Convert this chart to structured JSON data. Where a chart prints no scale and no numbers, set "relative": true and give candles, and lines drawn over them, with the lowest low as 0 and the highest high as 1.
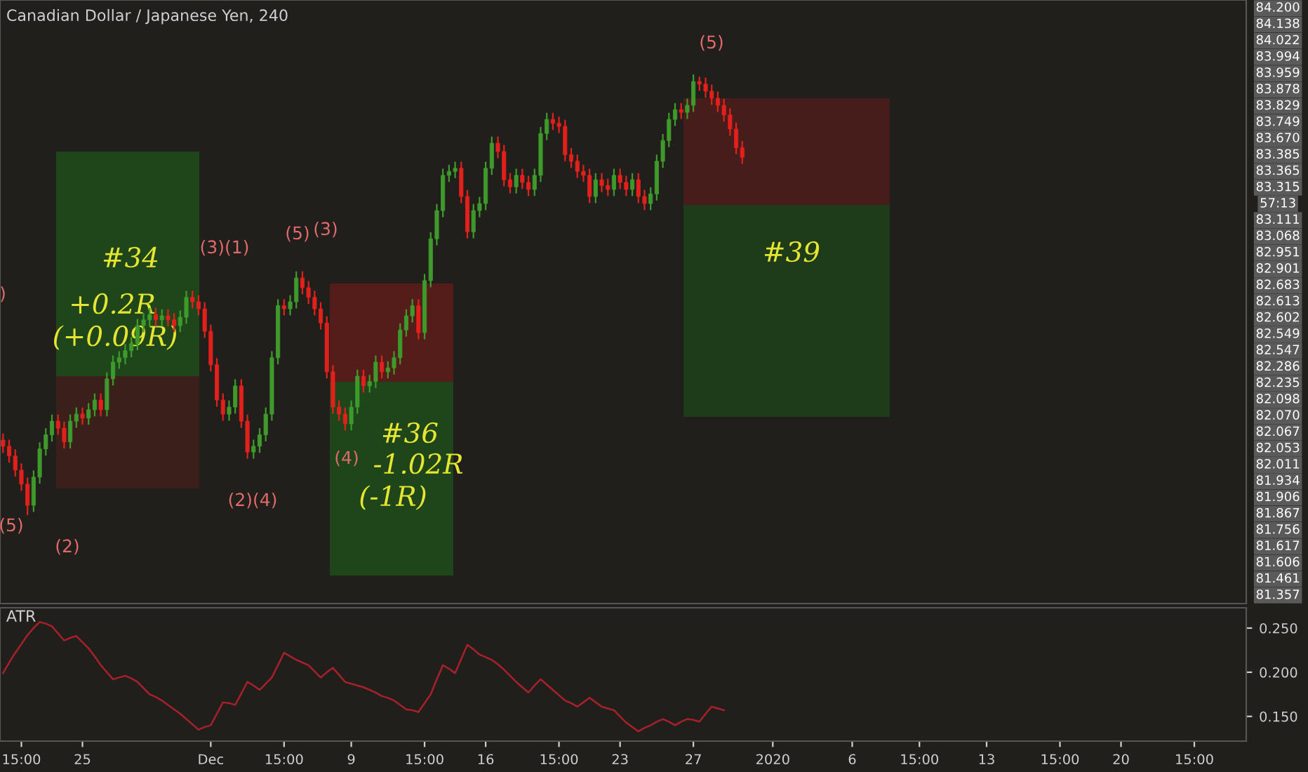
{
  "chart_data": [
    {
      "type": "candlestick",
      "title": "Canadian Dollar / Japanese Yen, 240",
      "relative": true,
      "grid": false,
      "categories": [
        null,
        null,
        null,
        null,
        null,
        null,
        null,
        null,
        null,
        null,
        null,
        null,
        null,
        null,
        null,
        null,
        null,
        null,
        null,
        null,
        null,
        null,
        null,
        null,
        null,
        null,
        null,
        null,
        null,
        null,
        null,
        null,
        null,
        null,
        null,
        null,
        null,
        null,
        null,
        null,
        null,
        null,
        null,
        null,
        null,
        null,
        null,
        null,
        null,
        null,
        null,
        null,
        null,
        null,
        null,
        null,
        null,
        null,
        null,
        null,
        null,
        null,
        null,
        null,
        null,
        null,
        null,
        null,
        null,
        null,
        null,
        null,
        null,
        null,
        null,
        null,
        null,
        null,
        null,
        null,
        null,
        null,
        null,
        null,
        null,
        null,
        null,
        null,
        null,
        null,
        null,
        null,
        null,
        null,
        null,
        null,
        null,
        null,
        null,
        null,
        null,
        null,
        null,
        null,
        null,
        null,
        null,
        null,
        null,
        null,
        null,
        null,
        null,
        null,
        null,
        null,
        null,
        null,
        null,
        null,
        null,
        null,
        null,
        null,
        null,
        null,
        null,
        null,
        null,
        null,
        null,
        null,
        null,
        null,
        null,
        null,
        null,
        null,
        null,
        null,
        null,
        null,
        null,
        null,
        null,
        null,
        null,
        null,
        null,
        null,
        null,
        null,
        null,
        null,
        null,
        null,
        null,
        null,
        null,
        null,
        null,
        null,
        null,
        null,
        null,
        null,
        null,
        null,
        null,
        null,
        null,
        null,
        null,
        null,
        null,
        null,
        null,
        null,
        null,
        null,
        null,
        null,
        null,
        null,
        null,
        null,
        null,
        null,
        null,
        null,
        null,
        null,
        null,
        null,
        null,
        null,
        null,
        null,
        null,
        null,
        null,
        null,
        null,
        null
      ],
      "ohlc": [
        [
          0.17,
          0.185,
          0.141,
          0.156
        ],
        [
          0.156,
          0.171,
          0.119,
          0.134
        ],
        [
          0.134,
          0.149,
          0.087,
          0.102
        ],
        [
          0.102,
          0.117,
          0.055,
          0.07
        ],
        [
          0.07,
          0.085,
          0,
          0.022
        ],
        [
          0.022,
          0.101,
          0.007,
          0.086
        ],
        [
          0.086,
          0.165,
          0.071,
          0.15
        ],
        [
          0.15,
          0.197,
          0.135,
          0.182
        ],
        [
          0.182,
          0.228,
          0.167,
          0.213
        ],
        [
          0.213,
          0.228,
          0.182,
          0.197
        ],
        [
          0.197,
          0.212,
          0.151,
          0.166
        ],
        [
          0.166,
          0.228,
          0.151,
          0.213
        ],
        [
          0.213,
          0.244,
          0.198,
          0.229
        ],
        [
          0.229,
          0.244,
          0.205,
          0.22
        ],
        [
          0.22,
          0.254,
          0.205,
          0.239
        ],
        [
          0.239,
          0.276,
          0.224,
          0.261
        ],
        [
          0.261,
          0.276,
          0.224,
          0.239
        ],
        [
          0.239,
          0.324,
          0.224,
          0.309
        ],
        [
          0.309,
          0.362,
          0.294,
          0.347
        ],
        [
          0.347,
          0.372,
          0.332,
          0.357
        ],
        [
          0.357,
          0.388,
          0.342,
          0.373
        ],
        [
          0.373,
          0.404,
          0.358,
          0.389
        ],
        [
          0.389,
          0.445,
          0.374,
          0.43
        ],
        [
          0.43,
          0.458,
          0.415,
          0.443
        ],
        [
          0.443,
          0.47,
          0.428,
          0.455
        ],
        [
          0.455,
          0.47,
          0.428,
          0.443
        ],
        [
          0.443,
          0.467,
          0.428,
          0.452
        ],
        [
          0.452,
          0.467,
          0.428,
          0.443
        ],
        [
          0.443,
          0.458,
          0.415,
          0.43
        ],
        [
          0.43,
          0.464,
          0.415,
          0.449
        ],
        [
          0.449,
          0.509,
          0.434,
          0.494
        ],
        [
          0.494,
          0.509,
          0.469,
          0.484
        ],
        [
          0.484,
          0.499,
          0.453,
          0.468
        ],
        [
          0.468,
          0.483,
          0.402,
          0.417
        ],
        [
          0.417,
          0.432,
          0.326,
          0.341
        ],
        [
          0.341,
          0.356,
          0.246,
          0.261
        ],
        [
          0.261,
          0.276,
          0.214,
          0.229
        ],
        [
          0.229,
          0.26,
          0.214,
          0.245
        ],
        [
          0.245,
          0.308,
          0.23,
          0.293
        ],
        [
          0.293,
          0.308,
          0.198,
          0.213
        ],
        [
          0.213,
          0.228,
          0.128,
          0.143
        ],
        [
          0.143,
          0.171,
          0.128,
          0.156
        ],
        [
          0.156,
          0.197,
          0.141,
          0.182
        ],
        [
          0.182,
          0.244,
          0.167,
          0.229
        ],
        [
          0.229,
          0.372,
          0.214,
          0.357
        ],
        [
          0.357,
          0.49,
          0.342,
          0.475
        ],
        [
          0.475,
          0.49,
          0.453,
          0.468
        ],
        [
          0.468,
          0.499,
          0.453,
          0.484
        ],
        [
          0.484,
          0.553,
          0.469,
          0.538
        ],
        [
          0.538,
          0.553,
          0.501,
          0.516
        ],
        [
          0.516,
          0.531,
          0.479,
          0.494
        ],
        [
          0.494,
          0.509,
          0.453,
          0.468
        ],
        [
          0.468,
          0.483,
          0.421,
          0.436
        ],
        [
          0.436,
          0.451,
          0.31,
          0.325
        ],
        [
          0.325,
          0.34,
          0.23,
          0.245
        ],
        [
          0.245,
          0.26,
          0.214,
          0.229
        ],
        [
          0.229,
          0.244,
          0.192,
          0.207
        ],
        [
          0.207,
          0.26,
          0.192,
          0.245
        ],
        [
          0.245,
          0.33,
          0.23,
          0.315
        ],
        [
          0.315,
          0.33,
          0.278,
          0.293
        ],
        [
          0.293,
          0.318,
          0.278,
          0.303
        ],
        [
          0.303,
          0.362,
          0.288,
          0.347
        ],
        [
          0.347,
          0.362,
          0.31,
          0.325
        ],
        [
          0.325,
          0.349,
          0.31,
          0.334
        ],
        [
          0.334,
          0.372,
          0.319,
          0.357
        ],
        [
          0.357,
          0.435,
          0.342,
          0.42
        ],
        [
          0.42,
          0.467,
          0.405,
          0.452
        ],
        [
          0.452,
          0.49,
          0.437,
          0.475
        ],
        [
          0.475,
          0.49,
          0.399,
          0.414
        ],
        [
          0.414,
          0.547,
          0.399,
          0.532
        ],
        [
          0.532,
          0.642,
          0.517,
          0.627
        ],
        [
          0.627,
          0.706,
          0.612,
          0.691
        ],
        [
          0.691,
          0.786,
          0.676,
          0.771
        ],
        [
          0.771,
          0.795,
          0.756,
          0.78
        ],
        [
          0.78,
          0.802,
          0.765,
          0.787
        ],
        [
          0.787,
          0.802,
          0.708,
          0.723
        ],
        [
          0.723,
          0.738,
          0.628,
          0.643
        ],
        [
          0.643,
          0.706,
          0.628,
          0.691
        ],
        [
          0.691,
          0.722,
          0.676,
          0.707
        ],
        [
          0.707,
          0.802,
          0.692,
          0.787
        ],
        [
          0.787,
          0.859,
          0.772,
          0.844
        ],
        [
          0.844,
          0.859,
          0.81,
          0.825
        ],
        [
          0.825,
          0.84,
          0.746,
          0.761
        ],
        [
          0.761,
          0.776,
          0.73,
          0.745
        ],
        [
          0.745,
          0.786,
          0.73,
          0.771
        ],
        [
          0.771,
          0.786,
          0.74,
          0.755
        ],
        [
          0.755,
          0.77,
          0.724,
          0.739
        ],
        [
          0.739,
          0.786,
          0.724,
          0.771
        ],
        [
          0.771,
          0.881,
          0.756,
          0.866
        ],
        [
          0.866,
          0.913,
          0.851,
          0.898
        ],
        [
          0.898,
          0.913,
          0.874,
          0.889
        ],
        [
          0.889,
          0.904,
          0.867,
          0.882
        ],
        [
          0.882,
          0.897,
          0.803,
          0.818
        ],
        [
          0.818,
          0.833,
          0.788,
          0.803
        ],
        [
          0.803,
          0.818,
          0.765,
          0.78
        ],
        [
          0.78,
          0.795,
          0.756,
          0.771
        ],
        [
          0.771,
          0.786,
          0.708,
          0.723
        ],
        [
          0.723,
          0.776,
          0.708,
          0.761
        ],
        [
          0.761,
          0.776,
          0.733,
          0.748
        ],
        [
          0.748,
          0.763,
          0.724,
          0.739
        ],
        [
          0.739,
          0.786,
          0.724,
          0.771
        ],
        [
          0.771,
          0.786,
          0.74,
          0.755
        ],
        [
          0.755,
          0.77,
          0.724,
          0.739
        ],
        [
          0.739,
          0.776,
          0.724,
          0.761
        ],
        [
          0.761,
          0.776,
          0.708,
          0.723
        ],
        [
          0.723,
          0.738,
          0.692,
          0.707
        ],
        [
          0.707,
          0.744,
          0.692,
          0.729
        ],
        [
          0.729,
          0.818,
          0.714,
          0.803
        ],
        [
          0.803,
          0.865,
          0.788,
          0.85
        ],
        [
          0.85,
          0.913,
          0.835,
          0.898
        ],
        [
          0.898,
          0.935,
          0.883,
          0.92
        ],
        [
          0.92,
          0.935,
          0.899,
          0.914
        ],
        [
          0.914,
          0.945,
          0.899,
          0.93
        ],
        [
          0.93,
          1,
          0.915,
          0.984
        ],
        [
          0.984,
          0.995,
          0.963,
          0.978
        ],
        [
          0.978,
          0.993,
          0.947,
          0.962
        ],
        [
          0.962,
          0.977,
          0.931,
          0.946
        ],
        [
          0.946,
          0.961,
          0.915,
          0.93
        ],
        [
          0.93,
          0.945,
          0.893,
          0.908
        ],
        [
          0.908,
          0.923,
          0.861,
          0.876
        ],
        [
          0.876,
          0.891,
          0.819,
          0.834
        ],
        [
          0.834,
          0.849,
          0.797,
          0.812
        ],
        null,
        null,
        null,
        null,
        null,
        null,
        null,
        null,
        null,
        null,
        null,
        null,
        null,
        null,
        null,
        null,
        null,
        null,
        null,
        null,
        null,
        null,
        null,
        null,
        null,
        null,
        null,
        null,
        null,
        null,
        null,
        null,
        null,
        null,
        null,
        null,
        null,
        null,
        null,
        null,
        null,
        null,
        null,
        null,
        null,
        null,
        null,
        null,
        null,
        null,
        null,
        null,
        null,
        null,
        null,
        null,
        null,
        null,
        null,
        null,
        null,
        null,
        null,
        null,
        null,
        null,
        null,
        null,
        null,
        null,
        null,
        null,
        null,
        null,
        null,
        null,
        null,
        null,
        null,
        null,
        null,
        null
      ],
      "annotations": [
        ")",
        "(5)",
        "(2)",
        "(3)(1)",
        "(2)(4)",
        "(5)",
        "(3)",
        "(4)",
        "(5)",
        "#34",
        "+0.2R",
        "(+0.09R)",
        "#36",
        "-1.02R",
        "(-1R)",
        "#39",
        "84.200",
        "84.138",
        "84.022",
        "83.994",
        "83.959",
        "83.878",
        "83.829",
        "83.749",
        "83.670",
        "83.385",
        "83.365",
        "83.315",
        "57:13",
        "83.111",
        "83.068",
        "82.951",
        "82.901",
        "82.683",
        "82.613",
        "82.602",
        "82.549",
        "82.547",
        "82.286",
        "82.235",
        "82.098",
        "82.070",
        "82.067",
        "82.053",
        "82.011",
        "81.934",
        "81.906",
        "81.867",
        "81.756",
        "81.617",
        "81.606",
        "81.461",
        "81.357"
      ]
    },
    {
      "type": "line",
      "title": "ATR",
      "grid": false,
      "categories": [
        null,
        null,
        null,
        "15:00",
        null,
        null,
        null,
        null,
        null,
        null,
        null,
        null,
        null,
        "25",
        null,
        null,
        null,
        null,
        null,
        null,
        null,
        null,
        null,
        null,
        null,
        null,
        null,
        null,
        null,
        null,
        null,
        null,
        null,
        null,
        "Dec",
        null,
        null,
        null,
        null,
        null,
        null,
        null,
        null,
        null,
        null,
        null,
        "15:00",
        null,
        null,
        null,
        null,
        null,
        null,
        null,
        null,
        null,
        null,
        "9",
        null,
        null,
        null,
        null,
        null,
        null,
        null,
        null,
        null,
        null,
        null,
        "15:00",
        null,
        null,
        null,
        null,
        null,
        null,
        null,
        null,
        null,
        "16",
        null,
        null,
        null,
        null,
        null,
        null,
        null,
        null,
        null,
        null,
        null,
        "15:00",
        null,
        null,
        null,
        null,
        null,
        null,
        null,
        null,
        null,
        "23",
        null,
        null,
        null,
        null,
        null,
        null,
        null,
        null,
        null,
        null,
        null,
        "27",
        null,
        null,
        null,
        null,
        null,
        null,
        null,
        null,
        null,
        null,
        null,
        null,
        "2020",
        null,
        null,
        null,
        null,
        null,
        null,
        null,
        null,
        null,
        null,
        null,
        null,
        "6",
        null,
        null,
        null,
        null,
        null,
        null,
        null,
        null,
        null,
        null,
        "15:00",
        null,
        null,
        null,
        null,
        null,
        null,
        null,
        null,
        null,
        null,
        "13",
        null,
        null,
        null,
        null,
        null,
        null,
        null,
        null,
        null,
        null,
        null,
        "15:00",
        null,
        null,
        null,
        null,
        null,
        null,
        null,
        null,
        null,
        "20",
        null,
        null,
        null,
        null,
        null,
        null,
        null,
        null,
        null,
        null,
        null,
        "15:00",
        null,
        null,
        null,
        null,
        null,
        null,
        null,
        null
      ],
      "ylim": [
        0.122,
        0.273
      ],
      "yticks": [
        {
          "value": 0.15,
          "label": "0.150"
        },
        {
          "value": 0.2,
          "label": "0.200"
        },
        {
          "value": 0.25,
          "label": "0.250"
        }
      ],
      "series": [
        {
          "color": "#a8202a",
          "values": [
            0.199,
            0.211,
            0.222,
            0.232,
            0.242,
            0.25,
            0.257,
            0.255,
            0.252,
            0.244,
            0.236,
            0.239,
            0.241,
            0.234,
            0.227,
            0.218,
            0.208,
            0.2,
            0.192,
            0.194,
            0.196,
            0.193,
            0.189,
            0.182,
            0.175,
            0.172,
            0.168,
            0.163,
            0.158,
            0.153,
            0.147,
            0.141,
            0.135,
            0.138,
            0.14,
            0.153,
            0.166,
            0.165,
            0.163,
            0.176,
            0.189,
            0.185,
            0.18,
            0.187,
            0.194,
            0.208,
            0.222,
            0.218,
            0.214,
            0.211,
            0.208,
            0.201,
            0.194,
            0.2,
            0.205,
            0.197,
            0.189,
            0.187,
            0.185,
            0.183,
            0.18,
            0.177,
            0.173,
            0.171,
            0.168,
            0.163,
            0.158,
            0.157,
            0.155,
            0.165,
            0.175,
            0.192,
            0.208,
            0.204,
            0.199,
            0.215,
            0.231,
            0.226,
            0.22,
            0.217,
            0.214,
            0.209,
            0.203,
            0.196,
            0.189,
            0.183,
            0.177,
            0.185,
            0.192,
            0.186,
            0.18,
            0.174,
            0.168,
            0.165,
            0.161,
            0.166,
            0.171,
            0.166,
            0.161,
            0.159,
            0.157,
            0.15,
            0.143,
            0.138,
            0.133,
            0.137,
            0.14,
            0.144,
            0.147,
            0.144,
            0.14,
            0.144,
            0.147,
            0.146,
            0.144,
            0.153,
            0.161,
            0.159,
            0.157,
            null,
            null,
            null,
            null,
            null,
            null,
            null,
            null,
            null,
            null,
            null,
            null,
            null,
            null,
            null,
            null,
            null,
            null,
            null,
            null,
            null,
            null,
            null,
            null,
            null,
            null,
            null,
            null,
            null,
            null,
            null,
            null,
            null,
            null,
            null,
            null,
            null,
            null,
            null,
            null,
            null,
            null,
            null,
            null,
            null,
            null,
            null,
            null,
            null,
            null,
            null,
            null,
            null,
            null,
            null,
            null,
            null,
            null,
            null,
            null,
            null,
            null,
            null,
            null,
            null,
            null,
            null,
            null,
            null,
            null,
            null,
            null,
            null,
            null,
            null,
            null,
            null,
            null,
            null,
            null,
            null,
            null,
            null,
            null,
            null
          ]
        }
      ]
    }
  ]
}
